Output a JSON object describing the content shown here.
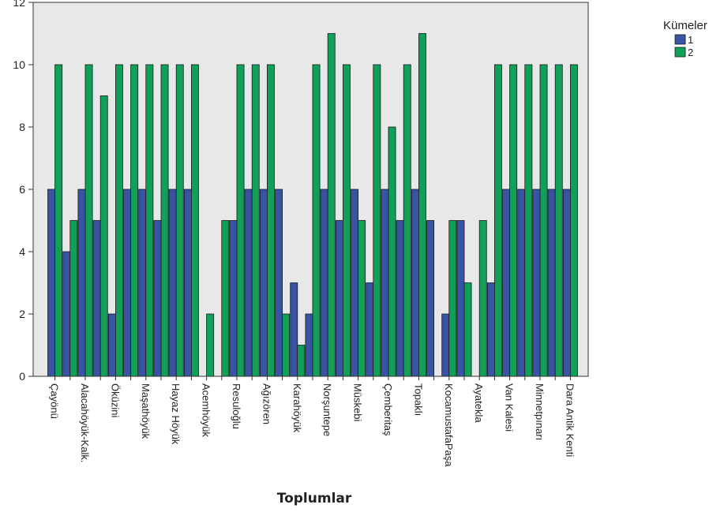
{
  "chart_data": {
    "type": "bar",
    "title": "",
    "xlabel": "Toplumlar",
    "ylabel": "",
    "ylim": [
      0,
      12
    ],
    "yticks": [
      0,
      2,
      4,
      6,
      8,
      10,
      12
    ],
    "grid": false,
    "legend": {
      "title": "Kümeler",
      "placement": "top-right"
    },
    "categories": [
      "Çayönü",
      "",
      "Alacahöyük-Kalk.",
      "",
      "Öküzini",
      "",
      "Maşathöyük",
      "",
      "Hayaz Höyük",
      "",
      "Acemhöyük",
      "",
      "Resuloğlu",
      "",
      "Ağızören",
      "",
      "Karahöyük",
      "",
      "Norşuntepe",
      "",
      "Müskebi",
      "",
      "Çemberitaş",
      "",
      "Topaklı",
      "",
      "KocamustafaPaşa",
      "",
      "Ayatekla",
      "",
      "Van Kalesi",
      "",
      "Minnetpınarı",
      "",
      "Dara Antik Kenti"
    ],
    "series": [
      {
        "name": "1",
        "color": "#3a54a4",
        "values": [
          6,
          4,
          6,
          5,
          2,
          6,
          6,
          5,
          6,
          6,
          0,
          0,
          5,
          6,
          6,
          6,
          3,
          2,
          6,
          5,
          6,
          3,
          6,
          5,
          6,
          5,
          2,
          5,
          0,
          3,
          6,
          6,
          6,
          6,
          6
        ]
      },
      {
        "name": "2",
        "color": "#10a05a",
        "values": [
          10,
          5,
          10,
          9,
          10,
          10,
          10,
          10,
          10,
          10,
          2,
          5,
          10,
          10,
          10,
          2,
          1,
          10,
          11,
          10,
          5,
          10,
          8,
          10,
          11,
          0,
          5,
          3,
          5,
          10,
          10,
          10,
          10,
          10,
          10
        ]
      }
    ]
  }
}
